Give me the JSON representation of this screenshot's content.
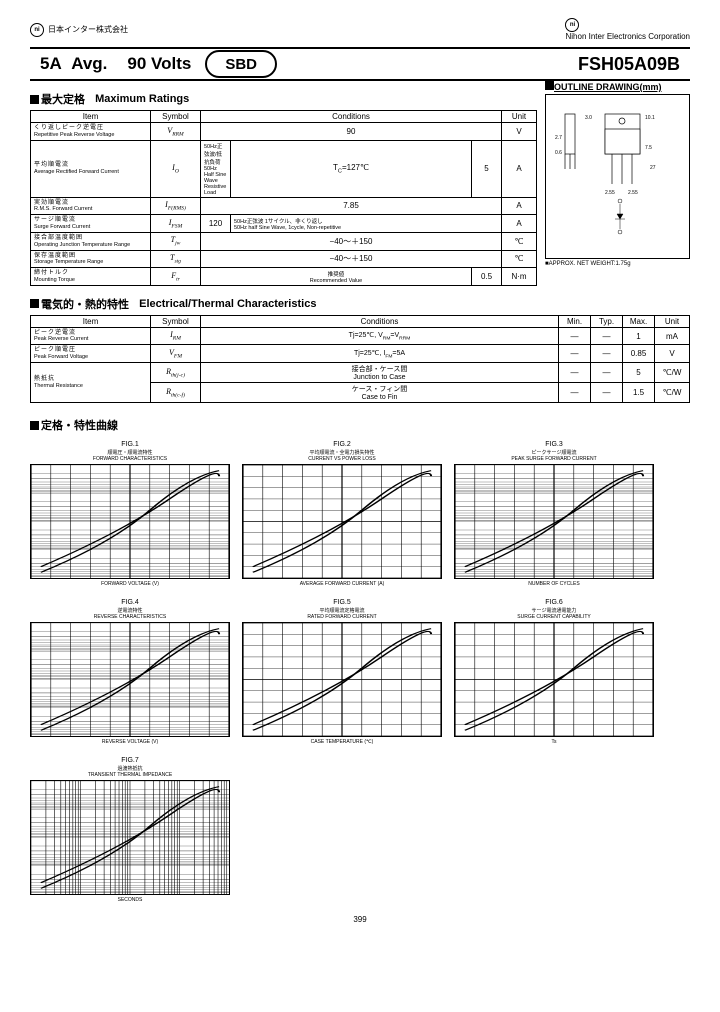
{
  "header": {
    "company_jp": "日本インター株式会社",
    "company_en": "Nihon Inter Electronics Corporation",
    "logo_text": "ni"
  },
  "titlebar": {
    "current": "5A",
    "avg": "Avg.",
    "voltage": "90 Volts",
    "type": "SBD",
    "part_number": "FSH05A09B"
  },
  "sections": {
    "max_ratings_jp": "最大定格",
    "max_ratings_en": "Maximum Ratings",
    "elec_thermal_jp": "電気的・熱的特性",
    "elec_thermal_en": "Electrical/Thermal Characteristics",
    "curves_jp": "定格・特性曲線",
    "outline_title": "OUTLINE DRAWING(mm)",
    "outline_weight": "APPROX. NET WEIGHT:1.75g"
  },
  "max_ratings": {
    "headers": {
      "item": "Item",
      "symbol": "Symbol",
      "conditions": "Conditions",
      "unit": "Unit"
    },
    "rows": [
      {
        "jp": "くり返しピーク逆電圧",
        "en": "Repetitive Peak Reverse Voltage",
        "symbol": "V<sub>RRM</sub>",
        "cond": "90",
        "unit": "V"
      },
      {
        "jp": "平均順電流",
        "en": "Average Rectified Forward Current",
        "symbol": "I<sub>O</sub>",
        "cond1": "50Hz正弦波/抵抗負荷<br>50Hz Half Sine Wave Resistive Load",
        "cond2": "T<sub>C</sub>=127℃",
        "val": "5",
        "unit": "A"
      },
      {
        "jp": "実効順電流",
        "en": "R.M.S. Forward Current",
        "symbol": "I<sub>F(RMS)</sub>",
        "cond": "7.85",
        "unit": "A"
      },
      {
        "jp": "サージ順電流",
        "en": "Surge Forward Current",
        "symbol": "I<sub>FSM</sub>",
        "val": "120",
        "cond": "50Hz正弦波 1サイクル、非くり返し<br>50Hz half Sine Wave, 1cycle, Non-repetitive",
        "unit": "A"
      },
      {
        "jp": "接合部温度範囲",
        "en": "Operating Junction Temperature Range",
        "symbol": "T<sub>jw</sub>",
        "cond": "−40～＋150",
        "unit": "℃"
      },
      {
        "jp": "保存温度範囲",
        "en": "Storage Temperature Range",
        "symbol": "T<sub>stg</sub>",
        "cond": "−40～＋150",
        "unit": "℃"
      },
      {
        "jp": "締付トルク",
        "en": "Mounting Torque",
        "symbol": "F<sub>tr</sub>",
        "cond1": "推奨値<br>Recommended Value",
        "val": "0.5",
        "unit": "N·m"
      }
    ]
  },
  "elec_thermal": {
    "headers": {
      "item": "Item",
      "symbol": "Symbol",
      "conditions": "Conditions",
      "min": "Min.",
      "typ": "Typ.",
      "max": "Max.",
      "unit": "Unit"
    },
    "rows": [
      {
        "jp": "ピーク逆電流",
        "en": "Peak Reverse Current",
        "symbol": "I<sub>RM</sub>",
        "cond": "Tj=25℃, V<sub>RM</sub>=V<sub>RRM</sub>",
        "min": "—",
        "typ": "—",
        "max": "1",
        "unit": "mA"
      },
      {
        "jp": "ピーク順電圧",
        "en": "Peak Forward Voltage",
        "symbol": "V<sub>FM</sub>",
        "cond": "Tj=25℃, I<sub>FM</sub>=5A",
        "min": "—",
        "typ": "—",
        "max": "0.85",
        "unit": "V"
      },
      {
        "jp": "熱抵抗",
        "en": "Thermal Resistance",
        "symbol": "R<sub>th(j-c)</sub>",
        "cond": "接合部・ケース間<br>Junction to Case",
        "min": "—",
        "typ": "—",
        "max": "5",
        "unit": "℃/W",
        "rowspan": 2
      },
      {
        "symbol": "R<sub>th(c-f)</sub>",
        "cond": "ケース・フィン間<br>Case to Fin",
        "min": "—",
        "typ": "—",
        "max": "1.5",
        "unit": "℃/W"
      }
    ]
  },
  "charts": [
    {
      "fig": "FIG.1",
      "sub_jp": "順電圧・順電流特性",
      "sub_en": "FORWARD CHARACTERISTICS",
      "xlabel": "FORWARD VOLTAGE (V)",
      "type": "semilog"
    },
    {
      "fig": "FIG.2",
      "sub_jp": "平均順電流・全電力損失特性",
      "sub_en": "CURRENT VS POWER LOSS",
      "xlabel": "AVERAGE FORWARD CURRENT (A)",
      "type": "linear"
    },
    {
      "fig": "FIG.3",
      "sub_jp": "ピークサージ順電流",
      "sub_en": "PEAK SURGE FORWARD CURRENT",
      "xlabel": "NUMBER OF CYCLES",
      "type": "semilog"
    },
    {
      "fig": "FIG.4",
      "sub_jp": "逆電流特性",
      "sub_en": "REVERSE CHARACTERISTICS",
      "xlabel": "REVERSE VOLTAGE (V)",
      "type": "semilog"
    },
    {
      "fig": "FIG.5",
      "sub_jp": "平均順電流定格電流",
      "sub_en": "RATED FORWARD CURRENT",
      "xlabel": "CASE TEMPERATURE (℃)",
      "type": "linear"
    },
    {
      "fig": "FIG.6",
      "sub_jp": "サージ電流通電能力",
      "sub_en": "SURGE CURRENT CAPABILITY",
      "xlabel": "Ts",
      "type": "linear"
    },
    {
      "fig": "FIG.7",
      "sub_jp": "過渡熱抵抗",
      "sub_en": "TRANSIENT THERMAL IMPEDANCE",
      "xlabel": "SECONDS",
      "type": "loglog"
    }
  ],
  "outline_dims": {
    "width": "10.1",
    "height": "27",
    "lead": "2.55",
    "pitch": "2.55",
    "body_h": "7.5",
    "hole": "3.0",
    "thick": "2.7",
    "tab": "0.6"
  },
  "page_number": "399"
}
